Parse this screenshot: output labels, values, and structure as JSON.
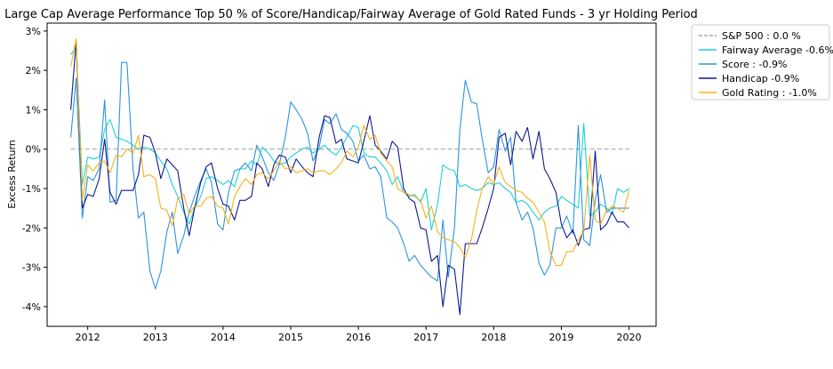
{
  "chart_data": {
    "type": "line",
    "title": "Large Cap Average Performance Top 50 % of Score/Handicap/Fairway Average of Gold Rated Funds - 3 yr Holding Period",
    "xlabel": "",
    "ylabel": "Excess Return",
    "xlim": [
      2011.4,
      2020.4
    ],
    "ylim": [
      -4.5,
      3.2
    ],
    "x_ticks": [
      2012,
      2013,
      2014,
      2015,
      2016,
      2017,
      2018,
      2019,
      2020
    ],
    "x_tick_labels": [
      "2012",
      "2013",
      "2014",
      "2015",
      "2016",
      "2017",
      "2018",
      "2019",
      "2020"
    ],
    "y_ticks": [
      -4,
      -3,
      -2,
      -1,
      0,
      1,
      2,
      3
    ],
    "y_tick_labels": [
      "-4%",
      "-3%",
      "-2%",
      "-1%",
      "0%",
      "1%",
      "2%",
      "3%"
    ],
    "grid": false,
    "legend_position": "outside-upper-right",
    "series": [
      {
        "name": "S&P 500 : 0.0 %",
        "color": "#aaaaaa",
        "dashed": true,
        "x": [
          2011.75,
          2020.0
        ],
        "y": [
          0.0,
          0.0
        ]
      },
      {
        "name": "Fairway Average -0.6%",
        "color": "#1fd1d1",
        "dashed": false,
        "x": [
          2011.75,
          2011.83,
          2011.92,
          2012.0,
          2012.08,
          2012.17,
          2012.25,
          2012.33,
          2012.42,
          2012.5,
          2012.58,
          2012.67,
          2012.75,
          2012.83,
          2012.92,
          2013.0,
          2013.08,
          2013.17,
          2013.25,
          2013.33,
          2013.42,
          2013.5,
          2013.58,
          2013.67,
          2013.75,
          2013.83,
          2013.92,
          2014.0,
          2014.08,
          2014.17,
          2014.25,
          2014.33,
          2014.42,
          2014.5,
          2014.58,
          2014.67,
          2014.75,
          2014.83,
          2014.92,
          2015.0,
          2015.08,
          2015.17,
          2015.25,
          2015.33,
          2015.42,
          2015.5,
          2015.58,
          2015.67,
          2015.75,
          2015.83,
          2015.92,
          2016.0,
          2016.08,
          2016.17,
          2016.25,
          2016.33,
          2016.42,
          2016.5,
          2016.58,
          2016.67,
          2016.75,
          2016.83,
          2016.92,
          2017.0,
          2017.08,
          2017.17,
          2017.25,
          2017.33,
          2017.42,
          2017.5,
          2017.58,
          2017.67,
          2017.75,
          2017.83,
          2017.92,
          2018.0,
          2018.08,
          2018.17,
          2018.25,
          2018.33,
          2018.42,
          2018.5,
          2018.58,
          2018.67,
          2018.75,
          2018.83,
          2018.92,
          2019.0,
          2019.08,
          2019.17,
          2019.25,
          2019.33,
          2019.42,
          2019.5,
          2019.58,
          2019.67,
          2019.75,
          2019.83,
          2019.92,
          2020.0
        ],
        "y": [
          2.4,
          2.6,
          -0.9,
          -0.2,
          -0.25,
          -0.2,
          0.5,
          0.75,
          0.3,
          0.25,
          0.2,
          0.1,
          0.0,
          0.05,
          0.0,
          -0.1,
          -0.3,
          -0.5,
          -0.9,
          -1.2,
          -1.6,
          -1.9,
          -1.5,
          -1.2,
          -0.75,
          -0.7,
          -0.8,
          -0.9,
          -0.8,
          -0.95,
          -0.5,
          -0.5,
          -0.3,
          -0.4,
          0.05,
          -0.1,
          -0.3,
          -0.4,
          -0.35,
          -0.2,
          -0.1,
          0.0,
          0.05,
          -0.1,
          0.0,
          0.1,
          -0.05,
          -0.15,
          0.05,
          0.3,
          0.6,
          0.55,
          -0.1,
          -0.2,
          -0.2,
          -0.35,
          -0.55,
          -0.9,
          -0.7,
          -1.1,
          -1.2,
          -1.15,
          -1.35,
          -1.0,
          -2.05,
          -1.4,
          -0.4,
          -0.5,
          -0.55,
          -0.95,
          -0.9,
          -1.0,
          -1.05,
          -1.0,
          -0.85,
          -0.9,
          -0.85,
          -1.0,
          -1.1,
          -1.35,
          -1.3,
          -1.4,
          -1.6,
          -1.8,
          -1.6,
          -1.5,
          -1.45,
          -1.2,
          -1.3,
          -1.4,
          -1.5,
          0.65,
          -1.7,
          -1.6,
          -1.4,
          -1.5,
          -1.65,
          -1.0,
          -1.1,
          -1.0
        ]
      },
      {
        "name": "Score : -0.9%",
        "color": "#2b94e6",
        "dashed": false,
        "x": [
          2011.75,
          2011.83,
          2011.92,
          2012.0,
          2012.08,
          2012.17,
          2012.25,
          2012.33,
          2012.42,
          2012.5,
          2012.58,
          2012.67,
          2012.75,
          2012.83,
          2012.92,
          2013.0,
          2013.08,
          2013.17,
          2013.25,
          2013.33,
          2013.42,
          2013.5,
          2013.58,
          2013.67,
          2013.75,
          2013.83,
          2013.92,
          2014.0,
          2014.08,
          2014.17,
          2014.25,
          2014.33,
          2014.42,
          2014.5,
          2014.58,
          2014.67,
          2014.75,
          2014.83,
          2014.92,
          2015.0,
          2015.08,
          2015.17,
          2015.25,
          2015.33,
          2015.42,
          2015.5,
          2015.58,
          2015.67,
          2015.75,
          2015.83,
          2015.92,
          2016.0,
          2016.08,
          2016.17,
          2016.25,
          2016.33,
          2016.42,
          2016.5,
          2016.58,
          2016.67,
          2016.75,
          2016.83,
          2016.92,
          2017.0,
          2017.08,
          2017.17,
          2017.25,
          2017.33,
          2017.42,
          2017.5,
          2017.58,
          2017.67,
          2017.75,
          2017.83,
          2017.92,
          2018.0,
          2018.08,
          2018.17,
          2018.25,
          2018.33,
          2018.42,
          2018.5,
          2018.58,
          2018.67,
          2018.75,
          2018.83,
          2018.92,
          2019.0,
          2019.08,
          2019.17,
          2019.25,
          2019.33,
          2019.42,
          2019.5,
          2019.58,
          2019.67,
          2019.75,
          2019.83,
          2019.92,
          2020.0
        ],
        "y": [
          0.3,
          1.8,
          -1.75,
          -0.7,
          -0.8,
          -0.5,
          1.25,
          -1.35,
          -1.3,
          2.2,
          2.2,
          -0.5,
          -1.75,
          -1.6,
          -3.1,
          -3.55,
          -3.1,
          -2.1,
          -1.6,
          -2.65,
          -2.2,
          -1.6,
          -1.2,
          -0.8,
          -0.5,
          -0.85,
          -1.9,
          -2.05,
          -1.1,
          -0.55,
          -0.5,
          -0.35,
          -0.55,
          0.1,
          -0.2,
          -0.6,
          -0.8,
          -0.4,
          0.3,
          1.2,
          1.0,
          0.75,
          0.4,
          -0.3,
          0.05,
          0.75,
          0.65,
          0.9,
          0.5,
          0.4,
          0.2,
          -0.3,
          -0.15,
          -0.5,
          -0.45,
          -0.7,
          -1.75,
          -1.85,
          -2.0,
          -2.4,
          -2.85,
          -2.7,
          -2.95,
          -3.1,
          -3.25,
          -3.35,
          -1.8,
          -3.25,
          -2.0,
          0.5,
          1.75,
          1.2,
          1.15,
          0.25,
          -0.6,
          -0.45,
          0.5,
          -0.05,
          0.3,
          -1.35,
          -1.8,
          -1.6,
          -2.0,
          -2.9,
          -3.2,
          -2.95,
          -2.0,
          -2.0,
          -1.7,
          -2.15,
          0.6,
          -2.3,
          -2.45,
          -1.3,
          -0.65,
          -1.6,
          -1.5,
          -1.5,
          -1.5,
          -1.5
        ],
        "note": ""
      },
      {
        "name": "Handicap -0.9%",
        "color": "#0f1a8c",
        "dashed": false,
        "x": [
          2011.75,
          2011.83,
          2011.92,
          2012.0,
          2012.08,
          2012.17,
          2012.25,
          2012.33,
          2012.42,
          2012.5,
          2012.58,
          2012.67,
          2012.75,
          2012.83,
          2012.92,
          2013.0,
          2013.08,
          2013.17,
          2013.25,
          2013.33,
          2013.42,
          2013.5,
          2013.58,
          2013.67,
          2013.75,
          2013.83,
          2013.92,
          2014.0,
          2014.08,
          2014.17,
          2014.25,
          2014.33,
          2014.42,
          2014.5,
          2014.58,
          2014.67,
          2014.75,
          2014.83,
          2014.92,
          2015.0,
          2015.08,
          2015.17,
          2015.25,
          2015.33,
          2015.42,
          2015.5,
          2015.58,
          2015.67,
          2015.75,
          2015.83,
          2015.92,
          2016.0,
          2016.08,
          2016.17,
          2016.25,
          2016.33,
          2016.42,
          2016.5,
          2016.58,
          2016.67,
          2016.75,
          2016.83,
          2016.92,
          2017.0,
          2017.08,
          2017.17,
          2017.25,
          2017.33,
          2017.42,
          2017.5,
          2017.58,
          2017.67,
          2017.75,
          2017.83,
          2017.92,
          2018.0,
          2018.08,
          2018.17,
          2018.25,
          2018.33,
          2018.42,
          2018.5,
          2018.58,
          2018.67,
          2018.75,
          2018.83,
          2018.92,
          2019.0,
          2019.08,
          2019.17,
          2019.25,
          2019.33,
          2019.42,
          2019.5,
          2019.58,
          2019.67,
          2019.75,
          2019.83,
          2019.92,
          2020.0
        ],
        "y": [
          1.0,
          2.75,
          -1.5,
          -1.15,
          -1.2,
          -0.75,
          0.25,
          -1.1,
          -1.4,
          -1.05,
          -1.05,
          -1.05,
          -0.65,
          0.35,
          0.3,
          -0.1,
          -0.75,
          -0.25,
          -0.4,
          -0.55,
          -1.5,
          -2.2,
          -1.5,
          -0.85,
          -0.45,
          -0.35,
          -1.0,
          -1.4,
          -1.45,
          -1.8,
          -1.3,
          -1.3,
          -1.2,
          -0.35,
          -0.5,
          -0.95,
          -0.4,
          -0.15,
          -0.2,
          -0.6,
          -0.25,
          -0.45,
          -0.6,
          -0.7,
          0.3,
          0.85,
          0.8,
          0.15,
          0.25,
          -0.25,
          -0.3,
          -0.35,
          0.2,
          0.85,
          0.1,
          -0.05,
          -0.25,
          0.2,
          0.05,
          -1.0,
          -1.25,
          -1.35,
          -2.0,
          -2.05,
          -2.85,
          -2.7,
          -4.0,
          -2.95,
          -3.05,
          -4.2,
          -2.4,
          -2.4,
          -2.4,
          -2.0,
          -1.5,
          -1.0,
          0.3,
          0.4,
          -0.4,
          0.45,
          0.2,
          0.55,
          -0.25,
          0.45,
          -0.5,
          -0.75,
          -1.1,
          -1.9,
          -2.25,
          -2.05,
          -2.45,
          -2.05,
          -2.0,
          -0.05,
          -2.05,
          -1.9,
          -1.6,
          -1.85,
          -1.85,
          -2.0
        ],
        "note": ""
      },
      {
        "name": "Gold Rating : -1.0%",
        "color": "#f5b21a",
        "dashed": false,
        "x": [
          2011.75,
          2011.83,
          2011.92,
          2012.0,
          2012.08,
          2012.17,
          2012.25,
          2012.33,
          2012.42,
          2012.5,
          2012.58,
          2012.67,
          2012.75,
          2012.83,
          2012.92,
          2013.0,
          2013.08,
          2013.17,
          2013.25,
          2013.33,
          2013.42,
          2013.5,
          2013.58,
          2013.67,
          2013.75,
          2013.83,
          2013.92,
          2014.0,
          2014.08,
          2014.17,
          2014.25,
          2014.33,
          2014.42,
          2014.5,
          2014.58,
          2014.67,
          2014.75,
          2014.83,
          2014.92,
          2015.0,
          2015.08,
          2015.17,
          2015.25,
          2015.33,
          2015.42,
          2015.5,
          2015.58,
          2015.67,
          2015.75,
          2015.83,
          2015.92,
          2016.0,
          2016.08,
          2016.17,
          2016.25,
          2016.33,
          2016.42,
          2016.5,
          2016.58,
          2016.67,
          2016.75,
          2016.83,
          2016.92,
          2017.0,
          2017.08,
          2017.17,
          2017.25,
          2017.33,
          2017.42,
          2017.5,
          2017.58,
          2017.67,
          2017.75,
          2017.83,
          2017.92,
          2018.0,
          2018.08,
          2018.17,
          2018.25,
          2018.33,
          2018.42,
          2018.5,
          2018.58,
          2018.67,
          2018.75,
          2018.83,
          2018.92,
          2019.0,
          2019.08,
          2019.17,
          2019.25,
          2019.33,
          2019.42,
          2019.5,
          2019.58,
          2019.67,
          2019.75,
          2019.83,
          2019.92,
          2020.0
        ],
        "y": [
          2.1,
          2.8,
          -1.3,
          -0.4,
          -0.55,
          -0.35,
          -0.3,
          -0.6,
          -0.15,
          -0.2,
          0.0,
          -0.1,
          0.35,
          -0.7,
          -0.65,
          -0.75,
          -1.5,
          -1.55,
          -1.95,
          -1.25,
          -1.15,
          -1.65,
          -1.45,
          -1.45,
          -1.25,
          -1.2,
          -1.45,
          -1.5,
          -1.9,
          -1.2,
          -0.95,
          -0.75,
          -0.9,
          -0.65,
          -0.6,
          -0.75,
          -0.55,
          -0.3,
          -0.5,
          -0.45,
          -0.6,
          -0.55,
          -0.5,
          -0.6,
          -0.55,
          -0.55,
          -0.65,
          -0.5,
          -0.35,
          -0.05,
          -0.2,
          0.05,
          0.6,
          0.25,
          0.35,
          -0.1,
          -0.3,
          -0.45,
          -1.0,
          -1.1,
          -1.15,
          -1.2,
          -1.3,
          -1.75,
          -1.45,
          -2.1,
          -2.25,
          -2.3,
          -2.35,
          -2.5,
          -2.75,
          -2.3,
          -1.55,
          -1.0,
          -0.7,
          -0.9,
          -0.45,
          -0.85,
          -0.95,
          -1.05,
          -1.1,
          -1.25,
          -1.35,
          -1.6,
          -1.85,
          -2.6,
          -2.95,
          -2.95,
          -2.6,
          -2.6,
          -2.3,
          -2.1,
          -0.15,
          -1.8,
          -1.9,
          -1.55,
          -1.45,
          -1.5,
          -1.6,
          -1.05
        ],
        "note": ""
      }
    ]
  }
}
